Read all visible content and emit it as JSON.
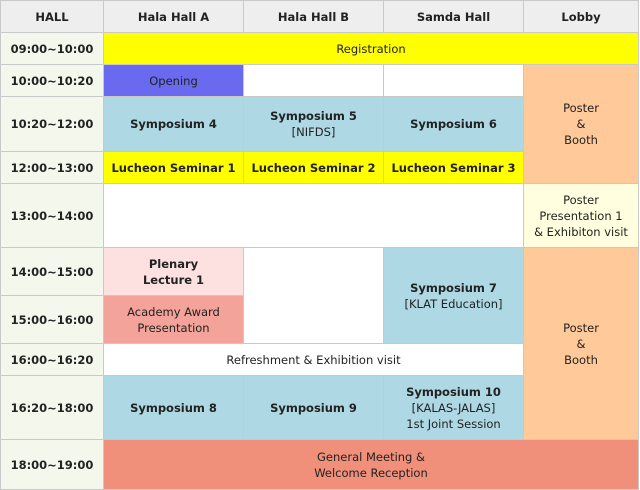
{
  "header": {
    "hall": "HALL",
    "hala_a": "Hala Hall A",
    "hala_b": "Hala Hall B",
    "samda": "Samda Hall",
    "lobby": "Lobby"
  },
  "times": {
    "t1": "09:00~10:00",
    "t2": "10:00~10:20",
    "t3": "10:20~12:00",
    "t4": "12:00~13:00",
    "t5": "13:00~14:00",
    "t6": "14:00~15:00",
    "t7": "15:00~16:00",
    "t8": "16:00~16:20",
    "t9": "16:20~18:00",
    "t10": "18:00~19:00"
  },
  "events": {
    "registration": "Registration",
    "opening": "Opening",
    "sym4": "Symposium 4",
    "sym5": "Symposium 5",
    "sym5_sub": "[NIFDS]",
    "sym6": "Symposium 6",
    "lunch1": "Lucheon Seminar 1",
    "lunch2": "Lucheon Seminar 2",
    "lunch3": "Lucheon Seminar 3",
    "plenary_l1": "Plenary",
    "plenary_l2": "Lecture 1",
    "sym7": "Symposium 7",
    "sym7_sub": "[KLAT Education]",
    "award_l1": "Academy Award",
    "award_l2": "Presentation",
    "refreshment": "Refreshment & Exhibition visit",
    "sym8": "Symposium 8",
    "sym9": "Symposium 9",
    "sym10": "Symposium 10",
    "sym10_sub1": "[KALAS-JALAS]",
    "sym10_sub2": "1st Joint Session",
    "general_l1": "General Meeting &",
    "general_l2": "Welcome Reception"
  },
  "lobby": {
    "poster_a_l1": "Poster",
    "poster_a_l2": "&",
    "poster_a_l3": "Booth",
    "pres_l1": "Poster",
    "pres_l2": "Presentation 1",
    "pres_l3": "& Exhibiton visit",
    "poster_b_l1": "Poster",
    "poster_b_l2": "&",
    "poster_b_l3": "Booth"
  },
  "colors": {
    "registration": "#ffff00",
    "opening": "#6a6af0",
    "symposium": "#add8e4",
    "plenary": "#fde0e0",
    "award": "#f4a39a",
    "lobby_booth": "#ffc99a",
    "lobby_presentation": "#ffffe0",
    "general_meeting": "#f0907a",
    "time_column": "#f4f8ec",
    "header": "#eeeeee"
  }
}
